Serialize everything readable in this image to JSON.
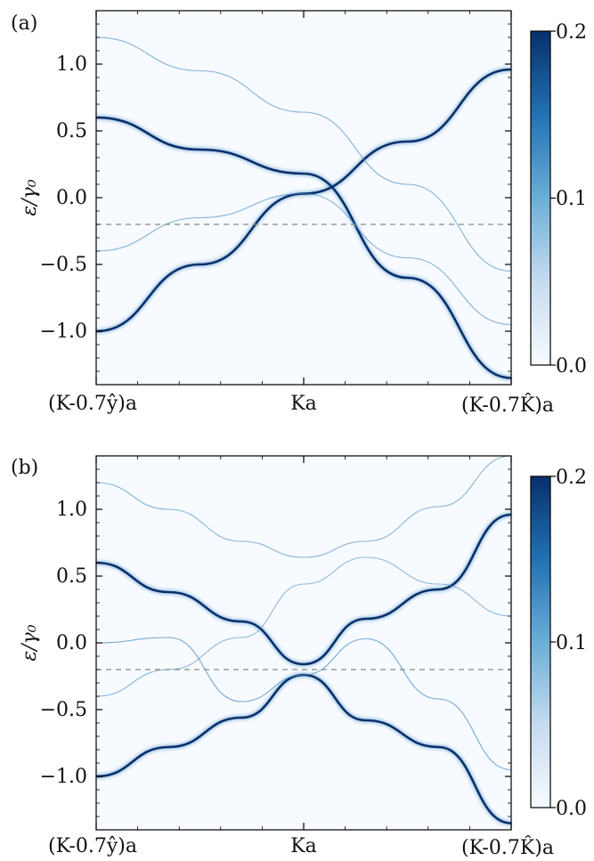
{
  "chart_data": [
    {
      "panel_label": "(a)",
      "type": "heatmap",
      "title": "",
      "xlabel": "",
      "ylabel": "ε/γ₀",
      "ylim": [
        -1.4,
        1.4
      ],
      "yticks": [
        "−1.0",
        "−0.5",
        "0.0",
        "0.5",
        "1.0"
      ],
      "ytick_values": [
        -1.0,
        -0.5,
        0.0,
        0.5,
        1.0
      ],
      "xticks": [
        "(K-0.7ŷ)a",
        "Ka",
        "(K-0.7K̂)a"
      ],
      "colormap": [
        "#f7fbff",
        "#c6dbef",
        "#6baed6",
        "#2171b5",
        "#08306b"
      ],
      "colorbar": {
        "min": 0.0,
        "max": 0.2,
        "ticks": [
          "0.0",
          "0.1",
          "0.2"
        ],
        "tick_values": [
          0.0,
          0.1,
          0.2
        ]
      },
      "reference_line": {
        "y": -0.2,
        "style": "dashed",
        "color": "#888888"
      },
      "bands": [
        {
          "x": [
            -1,
            -0.5,
            0,
            0.5,
            1
          ],
          "y": [
            0.6,
            0.36,
            0.18,
            -0.6,
            -1.35
          ],
          "intensity": 1.0
        },
        {
          "x": [
            -1,
            -0.5,
            0,
            0.5,
            1
          ],
          "y": [
            -1.0,
            -0.5,
            0.03,
            0.42,
            0.96
          ],
          "intensity": 1.0
        },
        {
          "x": [
            -1,
            -0.5,
            0,
            0.5,
            1
          ],
          "y": [
            1.2,
            0.95,
            0.64,
            0.1,
            -0.55
          ],
          "intensity": 0.4
        },
        {
          "x": [
            -1,
            -0.5,
            0,
            0.5,
            1
          ],
          "y": [
            -0.4,
            -0.15,
            0.03,
            -0.45,
            -0.95
          ],
          "intensity": 0.4
        }
      ]
    },
    {
      "panel_label": "(b)",
      "type": "heatmap",
      "title": "",
      "xlabel": "",
      "ylabel": "ε/γ₀",
      "ylim": [
        -1.4,
        1.4
      ],
      "yticks": [
        "−1.0",
        "−0.5",
        "0.0",
        "0.5",
        "1.0"
      ],
      "ytick_values": [
        -1.0,
        -0.5,
        0.0,
        0.5,
        1.0
      ],
      "xticks": [
        "(K-0.7ŷ)a",
        "Ka",
        "(K-0.7K̂)a"
      ],
      "colormap": [
        "#f7fbff",
        "#c6dbef",
        "#6baed6",
        "#2171b5",
        "#08306b"
      ],
      "colorbar": {
        "min": 0.0,
        "max": 0.2,
        "ticks": [
          "0.0",
          "0.1",
          "0.2"
        ],
        "tick_values": [
          0.0,
          0.1,
          0.2
        ]
      },
      "reference_line": {
        "y": -0.2,
        "style": "dashed",
        "color": "#888888"
      },
      "bands": [
        {
          "x": [
            -1,
            -0.65,
            -0.3,
            0,
            0.3,
            0.65,
            1
          ],
          "y": [
            0.6,
            0.38,
            0.16,
            -0.16,
            0.18,
            0.4,
            0.96
          ],
          "intensity": 1.0
        },
        {
          "x": [
            -1,
            -0.65,
            -0.3,
            0,
            0.3,
            0.65,
            1
          ],
          "y": [
            -1.0,
            -0.78,
            -0.56,
            -0.24,
            -0.58,
            -0.78,
            -1.35
          ],
          "intensity": 1.0
        },
        {
          "x": [
            -1,
            -0.65,
            -0.3,
            0,
            0.3,
            0.65,
            1
          ],
          "y": [
            0.0,
            0.04,
            -0.44,
            -0.24,
            0.03,
            -0.42,
            -0.95
          ],
          "intensity": 0.6
        },
        {
          "x": [
            -1,
            -0.65,
            -0.3,
            0,
            0.3,
            0.65,
            1
          ],
          "y": [
            1.2,
            1.0,
            0.76,
            0.64,
            0.76,
            1.02,
            1.4
          ],
          "intensity": 0.35
        },
        {
          "x": [
            -1,
            -0.65,
            -0.3,
            0,
            0.3,
            0.65,
            1
          ],
          "y": [
            -0.4,
            -0.2,
            0.04,
            0.44,
            0.64,
            0.44,
            0.2
          ],
          "intensity": 0.3
        }
      ]
    }
  ]
}
